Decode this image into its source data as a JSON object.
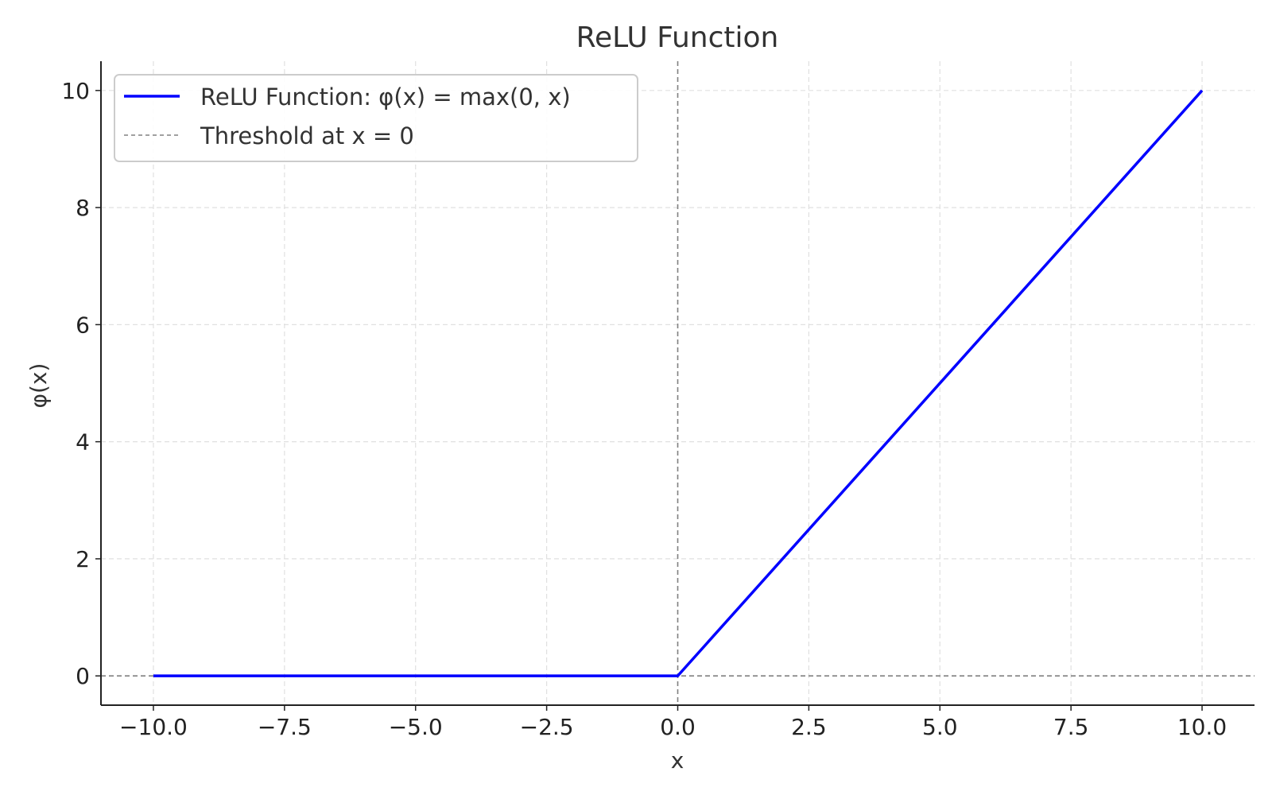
{
  "chart_data": {
    "type": "line",
    "title": "ReLU Function",
    "xlabel": "x",
    "ylabel": "φ(x)",
    "xlim": [
      -11,
      11
    ],
    "ylim": [
      -0.5,
      10.5
    ],
    "x_ticks": [
      -10.0,
      -7.5,
      -5.0,
      -2.5,
      0.0,
      2.5,
      5.0,
      7.5,
      10.0
    ],
    "x_tick_labels": [
      "−10.0",
      "−7.5",
      "−5.0",
      "−2.5",
      "0.0",
      "2.5",
      "5.0",
      "7.5",
      "10.0"
    ],
    "y_ticks": [
      0,
      2,
      4,
      6,
      8,
      10
    ],
    "y_tick_labels": [
      "0",
      "2",
      "4",
      "6",
      "8",
      "10"
    ],
    "grid": true,
    "legend_position": "upper-left",
    "series": [
      {
        "name": "ReLU Function: φ(x) = max(0, x)",
        "style": "solid",
        "color": "#0000ff",
        "x": [
          -10,
          0,
          10
        ],
        "y": [
          0,
          0,
          10
        ]
      }
    ],
    "reference_lines": [
      {
        "name": "Threshold at x = 0",
        "orientation": "vertical",
        "value": 0,
        "style": "dashed",
        "color": "#808080",
        "in_legend": true
      },
      {
        "orientation": "horizontal",
        "value": 0,
        "style": "dashed",
        "color": "#808080",
        "in_legend": false
      }
    ]
  }
}
